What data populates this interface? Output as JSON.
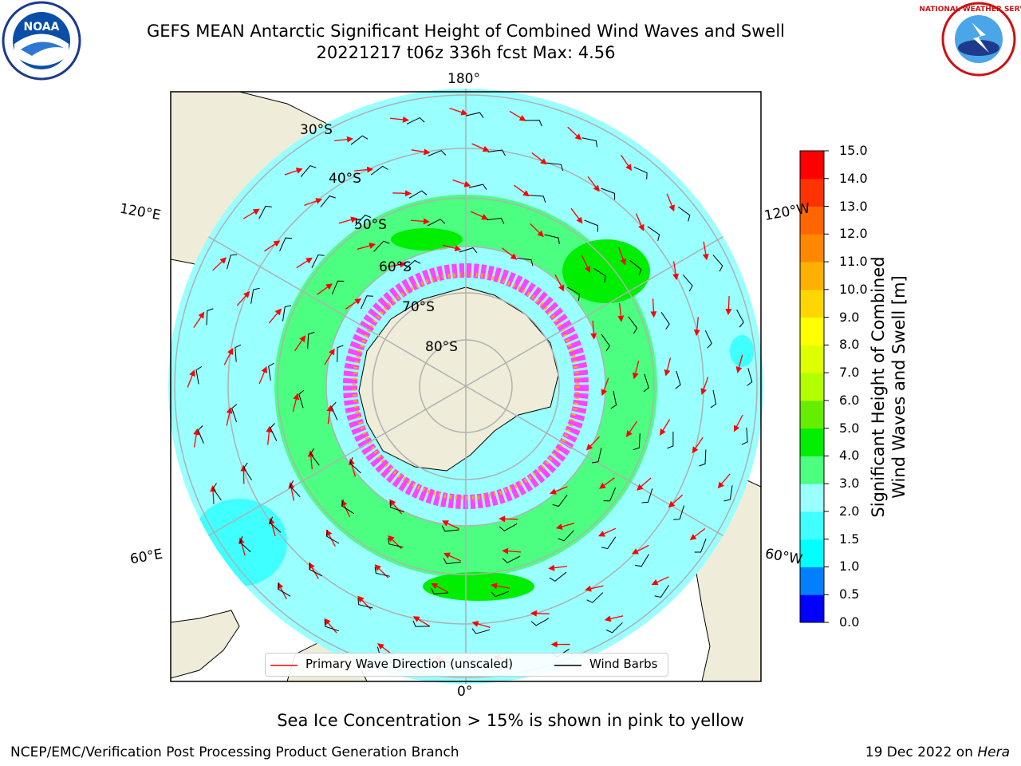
{
  "header": {
    "title_line1": "GEFS MEAN Antarctic Significant Height of Combined Wind Waves and Swell",
    "title_line2": "20221217 t06z 336h fcst   Max: 4.56"
  },
  "logos": {
    "left": {
      "text": "NOAA",
      "icon": "noaa-logo-icon"
    },
    "right": {
      "text": "NATIONAL WEATHER SERVICE",
      "icon": "nws-logo-icon"
    }
  },
  "map": {
    "projection": "south-polar-stereographic",
    "longitude_labels": {
      "top": "180°",
      "upper_left": "120°E",
      "upper_right": "120°W",
      "lower_left": "60°E",
      "lower_right": "60°W",
      "bottom": "0°"
    },
    "latitude_labels": [
      "30°S",
      "40°S",
      "50°S",
      "60°S",
      "70°S",
      "80°S"
    ],
    "colors": {
      "land": "#efedd9",
      "ocean_low": "#99ffff",
      "sea_ice": "#ff44ff",
      "arrow": "#ff0000",
      "barb": "#000000"
    }
  },
  "colorbar": {
    "title_line1": "Significant Height of Combined",
    "title_line2": "Wind Waves and Swell [m]",
    "ticks": [
      "0.0",
      "0.5",
      "1.0",
      "1.5",
      "2.0",
      "3.0",
      "4.0",
      "5.0",
      "6.0",
      "7.0",
      "8.0",
      "9.0",
      "10.0",
      "11.0",
      "12.0",
      "13.0",
      "14.0",
      "15.0"
    ],
    "colors": [
      "#0000ff",
      "#0080ff",
      "#00ffff",
      "#40ffff",
      "#99ffff",
      "#4dff80",
      "#00ee00",
      "#66ee00",
      "#b3ff00",
      "#ddff00",
      "#ffff00",
      "#ffd700",
      "#ffb000",
      "#ff8800",
      "#ff6600",
      "#ff3300",
      "#ff0000"
    ]
  },
  "legend": {
    "wave_direction_label": "Primary Wave Direction (unscaled)",
    "wind_barbs_label": "Wind Barbs"
  },
  "footer": {
    "note": "Sea Ice Concentration > 15% is shown in pink to yellow",
    "credit": "NCEP/EMC/Verification Post Processing Product Generation Branch",
    "date_prefix": "19 Dec 2022 on ",
    "date_machine": "Hera"
  }
}
